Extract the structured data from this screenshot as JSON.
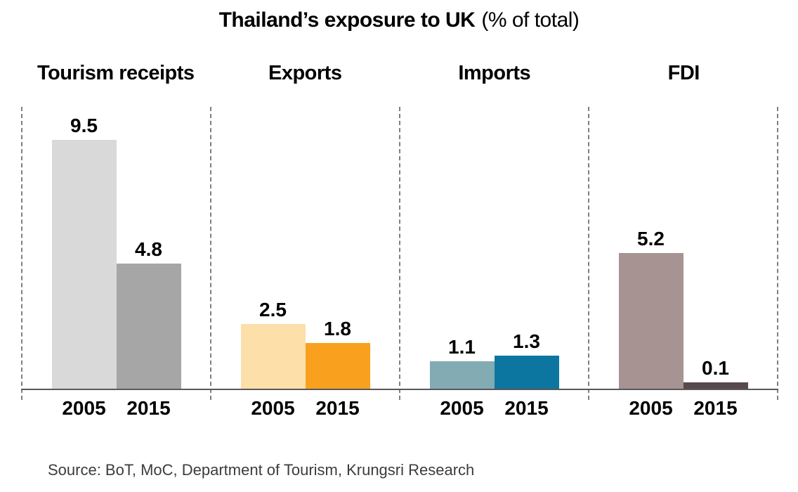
{
  "title": {
    "main": "Thailand’s exposure to UK",
    "suffix": "(% of total)"
  },
  "source": {
    "text": "Source: BoT, MoC, Department of Tourism, Krungsri Research"
  },
  "colors": {
    "axis": "#595959",
    "separator": "#7f7f7f",
    "label_text": "#000000",
    "source_text": "#3c3c3c"
  },
  "chart_data": {
    "type": "bar",
    "title": "Thailand’s exposure to UK (% of total)",
    "subtitle": "",
    "xlabel": "",
    "ylabel": "% of total",
    "categories": [
      "2005",
      "2015"
    ],
    "ylim": [
      0,
      10.5
    ],
    "grid": false,
    "legend": false,
    "panels": [
      {
        "label": "Tourism receipts",
        "series": [
          {
            "year": "2005",
            "value": 9.5,
            "color": "#d9d9d9"
          },
          {
            "year": "2015",
            "value": 4.8,
            "color": "#a6a6a6"
          }
        ]
      },
      {
        "label": "Exports",
        "series": [
          {
            "year": "2005",
            "value": 2.5,
            "color": "#fcdfa9"
          },
          {
            "year": "2015",
            "value": 1.8,
            "color": "#f9a11e"
          }
        ]
      },
      {
        "label": "Imports",
        "series": [
          {
            "year": "2005",
            "value": 1.1,
            "color": "#82abb4"
          },
          {
            "year": "2015",
            "value": 1.3,
            "color": "#0d76a0"
          }
        ]
      },
      {
        "label": "FDI",
        "series": [
          {
            "year": "2005",
            "value": 5.2,
            "color": "#a79492"
          },
          {
            "year": "2015",
            "value": 0.1,
            "color": "#564a4c"
          }
        ]
      }
    ]
  }
}
